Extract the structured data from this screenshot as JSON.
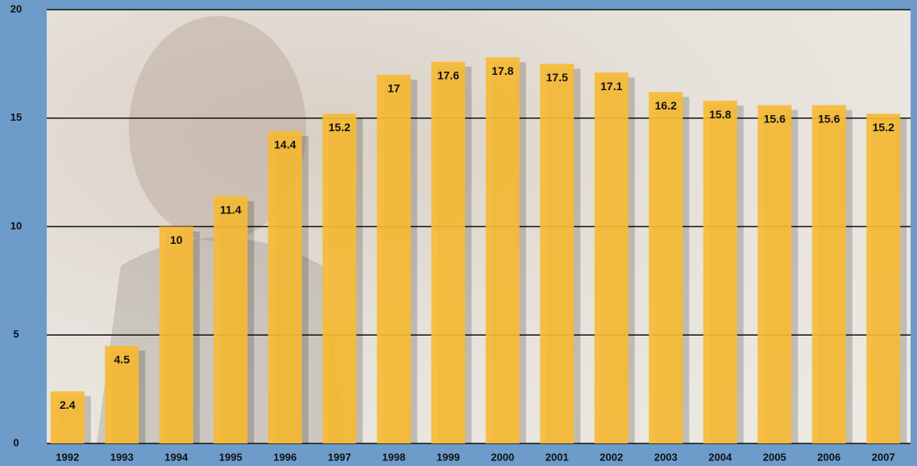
{
  "chart_data": {
    "type": "bar",
    "categories": [
      "1992",
      "1993",
      "1994",
      "1995",
      "1996",
      "1997",
      "1998",
      "1999",
      "2000",
      "2001",
      "2002",
      "2003",
      "2004",
      "2005",
      "2006",
      "2007"
    ],
    "values": [
      2.4,
      4.5,
      10,
      11.4,
      14.4,
      15.2,
      17,
      17.6,
      17.8,
      17.5,
      17.1,
      16.2,
      15.8,
      15.6,
      15.6,
      15.2
    ],
    "color": "#f6bb34",
    "ylim": [
      0,
      20
    ],
    "yticks": [
      0,
      5,
      10,
      15,
      20
    ],
    "grid": true
  }
}
